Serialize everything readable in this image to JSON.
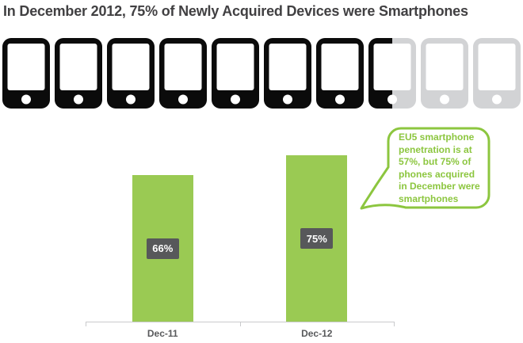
{
  "page": {
    "title": "In December 2012, 75% of Newly Acquired Devices were Smartphones",
    "title_color": "#414042",
    "background": "#ffffff"
  },
  "device_row": {
    "icon": "smartphone-icon",
    "total": 10,
    "filled": 7.5,
    "filled_percent_represented": 75,
    "filled_color": "#0b0b0b",
    "empty_color": "#d2d3d5"
  },
  "chart_data": {
    "type": "bar",
    "categories": [
      "Dec-11",
      "Dec-12"
    ],
    "values": [
      66,
      75
    ],
    "value_labels": [
      "66%",
      "75%"
    ],
    "unit": "%",
    "ylim": [
      0,
      100
    ],
    "grid": false,
    "legend": false,
    "title": "",
    "xlabel": "",
    "ylabel": "",
    "bar_color": "#9aca53",
    "value_label_bg": "#57585a",
    "value_label_color": "#ffffff",
    "axis_color": "#c9cacc",
    "category_label_color": "#58595b"
  },
  "callout": {
    "text": "EU5 smartphone\npenetration is at\n57%, but 75% of\nphones acquired\nin December were\nsmartphones",
    "text_color": "#8cc63f",
    "border_color": "#8cc63f",
    "fill_color": "#ffffff"
  }
}
